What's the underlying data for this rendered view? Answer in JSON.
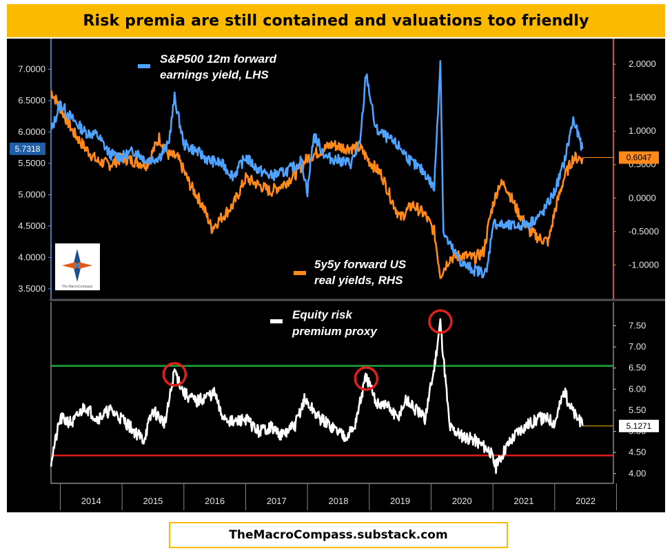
{
  "title": "Risk premia are still contained and valuations too friendly",
  "footer": "TheMacroCompass.substack.com",
  "logo_text": "The MacroCompass",
  "colors": {
    "banner": "#fbb900",
    "background": "#000000",
    "earnings_yield": "#4da3ff",
    "real_yield": "#ff8a1a",
    "erp": "#ffffff",
    "upper_line": "#1faa3c",
    "lower_line": "#e0201b",
    "circle": "#e0201b"
  },
  "chart_data": [
    {
      "type": "line",
      "panel": "top",
      "series": [
        {
          "name": "S&P500 12m forward earnings yield, LHS",
          "axis": "left",
          "last_value_label": "5.7318",
          "x": [
            2013.85,
            2014.0,
            2014.2,
            2014.4,
            2014.6,
            2014.8,
            2015.0,
            2015.2,
            2015.4,
            2015.6,
            2015.75,
            2015.85,
            2016.0,
            2016.2,
            2016.4,
            2016.6,
            2016.8,
            2017.0,
            2017.2,
            2017.4,
            2017.6,
            2017.8,
            2017.9,
            2018.0,
            2018.1,
            2018.3,
            2018.5,
            2018.7,
            2018.85,
            2018.95,
            2019.1,
            2019.3,
            2019.5,
            2019.7,
            2019.9,
            2020.05,
            2020.15,
            2020.2,
            2020.3,
            2020.5,
            2020.7,
            2020.9,
            2021.0,
            2021.2,
            2021.4,
            2021.6,
            2021.8,
            2022.0,
            2022.15,
            2022.3,
            2022.45
          ],
          "values": [
            6.0,
            6.45,
            6.2,
            6.0,
            5.95,
            5.65,
            5.6,
            5.7,
            5.55,
            5.6,
            5.8,
            6.55,
            5.8,
            5.7,
            5.55,
            5.5,
            5.3,
            5.6,
            5.4,
            5.3,
            5.35,
            5.45,
            5.55,
            5.05,
            5.95,
            5.6,
            5.55,
            5.5,
            5.8,
            6.95,
            6.05,
            5.9,
            5.75,
            5.5,
            5.35,
            5.1,
            7.15,
            4.4,
            4.2,
            3.9,
            3.8,
            3.75,
            4.55,
            4.5,
            4.5,
            4.55,
            4.7,
            5.05,
            5.5,
            6.2,
            5.73
          ]
        },
        {
          "name": "5y5y forward US real yields, RHS",
          "axis": "right",
          "last_value_label": "0.6047",
          "x": [
            2013.85,
            2014.0,
            2014.2,
            2014.4,
            2014.6,
            2014.8,
            2015.0,
            2015.2,
            2015.4,
            2015.6,
            2015.75,
            2015.9,
            2016.1,
            2016.3,
            2016.45,
            2016.6,
            2016.8,
            2017.0,
            2017.2,
            2017.4,
            2017.6,
            2017.8,
            2018.0,
            2018.2,
            2018.4,
            2018.6,
            2018.85,
            2019.0,
            2019.2,
            2019.35,
            2019.5,
            2019.7,
            2019.9,
            2020.05,
            2020.15,
            2020.3,
            2020.5,
            2020.7,
            2020.85,
            2020.95,
            2021.0,
            2021.1,
            2021.2,
            2021.4,
            2021.6,
            2021.75,
            2021.9,
            2022.0,
            2022.15,
            2022.3,
            2022.45
          ],
          "values": [
            1.6,
            1.35,
            1.0,
            0.75,
            0.55,
            0.5,
            0.6,
            0.55,
            0.5,
            0.9,
            0.65,
            0.6,
            0.2,
            -0.1,
            -0.45,
            -0.3,
            -0.1,
            0.3,
            0.2,
            0.1,
            0.2,
            0.35,
            0.6,
            0.7,
            0.8,
            0.75,
            0.75,
            0.55,
            0.35,
            0.0,
            -0.3,
            -0.1,
            -0.25,
            -0.5,
            -1.15,
            -0.9,
            -0.85,
            -0.9,
            -0.8,
            -0.3,
            -0.1,
            0.2,
            0.2,
            -0.2,
            -0.5,
            -0.6,
            -0.65,
            -0.2,
            0.3,
            0.6,
            0.6
          ]
        }
      ],
      "left_axis": {
        "ticks": [
          "3.5000",
          "4.0000",
          "4.5000",
          "5.0000",
          "5.5000",
          "6.0000",
          "6.5000",
          "7.0000"
        ],
        "ylim": [
          3.4,
          7.4
        ]
      },
      "right_axis": {
        "ticks": [
          "-1.0000",
          "-0.5000",
          "0.0000",
          "0.5000",
          "1.0000",
          "1.5000",
          "2.0000"
        ],
        "ylim": [
          -1.45,
          2.3
        ]
      }
    },
    {
      "type": "line",
      "panel": "bottom",
      "series": [
        {
          "name": "Equity risk premium proxy",
          "last_value_label": "5.1271",
          "x": [
            2013.85,
            2014.0,
            2014.2,
            2014.4,
            2014.6,
            2014.8,
            2015.0,
            2015.2,
            2015.35,
            2015.5,
            2015.62,
            2015.7,
            2015.85,
            2016.0,
            2016.2,
            2016.4,
            2016.5,
            2016.6,
            2016.8,
            2017.0,
            2017.2,
            2017.4,
            2017.6,
            2017.8,
            2017.95,
            2018.2,
            2018.4,
            2018.6,
            2018.75,
            2018.95,
            2019.1,
            2019.3,
            2019.45,
            2019.6,
            2019.75,
            2019.9,
            2020.05,
            2020.15,
            2020.3,
            2020.5,
            2020.7,
            2020.85,
            2020.95,
            2021.05,
            2021.2,
            2021.4,
            2021.6,
            2021.75,
            2021.9,
            2022.0,
            2022.15,
            2022.3,
            2022.45
          ],
          "values": [
            4.3,
            5.3,
            5.2,
            5.6,
            5.3,
            5.5,
            5.3,
            5.0,
            4.8,
            5.5,
            5.3,
            5.2,
            6.45,
            5.9,
            5.7,
            5.85,
            5.9,
            5.4,
            5.2,
            5.3,
            5.0,
            5.1,
            4.9,
            5.15,
            5.75,
            5.3,
            5.1,
            4.9,
            5.05,
            6.3,
            5.7,
            5.6,
            5.3,
            5.75,
            5.5,
            5.3,
            6.5,
            7.6,
            5.1,
            4.9,
            4.8,
            4.65,
            4.55,
            4.15,
            4.6,
            5.0,
            5.2,
            5.3,
            5.3,
            5.2,
            5.95,
            5.45,
            5.13
          ]
        }
      ],
      "reference_lines": [
        {
          "value": 6.55,
          "color": "#1faa3c"
        },
        {
          "value": 4.43,
          "color": "#e0201b"
        }
      ],
      "highlighted_peaks": [
        {
          "x": 2015.85,
          "y": 6.35
        },
        {
          "x": 2018.95,
          "y": 6.25
        },
        {
          "x": 2020.15,
          "y": 7.6
        }
      ],
      "right_axis": {
        "ticks": [
          "4.00",
          "4.50",
          "5.00",
          "5.50",
          "6.00",
          "6.50",
          "7.00",
          "7.50"
        ],
        "ylim": [
          3.85,
          7.9
        ]
      },
      "x_axis": {
        "labels": [
          "2014",
          "2015",
          "2016",
          "2017",
          "2018",
          "2019",
          "2020",
          "2021",
          "2022"
        ],
        "xlim": [
          2013.85,
          2022.95
        ]
      }
    }
  ]
}
